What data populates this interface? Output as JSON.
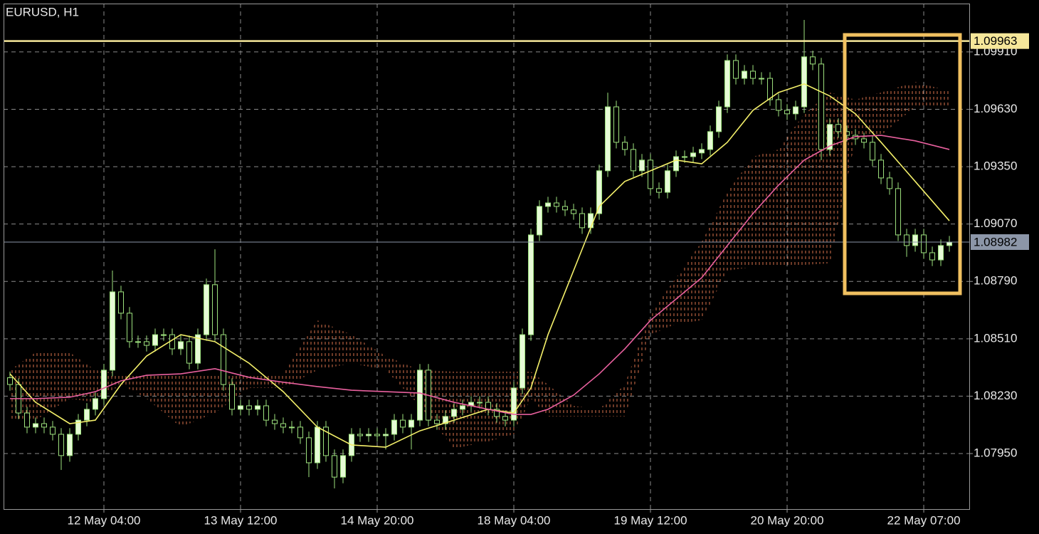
{
  "chart_data": {
    "type": "candlestick",
    "title": "EURUSD, H1",
    "xlim": [
      -0.75,
      112.33
    ],
    "ylim": [
      1.07679,
      1.10146
    ],
    "xticks": [
      {
        "value": 11,
        "label": "12 May 04:00"
      },
      {
        "value": 27,
        "label": "13 May 12:00"
      },
      {
        "value": 43,
        "label": "14 May 20:00"
      },
      {
        "value": 59,
        "label": "18 May 04:00"
      },
      {
        "value": 75,
        "label": "19 May 12:00"
      },
      {
        "value": 91,
        "label": "20 May 20:00"
      },
      {
        "value": 107,
        "label": "22 May 07:00"
      }
    ],
    "yticks": [
      {
        "value": 1.0795,
        "label": "1.07950"
      },
      {
        "value": 1.0823,
        "label": "1.08230"
      },
      {
        "value": 1.0851,
        "label": "1.08510"
      },
      {
        "value": 1.0879,
        "label": "1.08790"
      },
      {
        "value": 1.0907,
        "label": "1.09070"
      },
      {
        "value": 1.0935,
        "label": "1.09350"
      },
      {
        "value": 1.0963,
        "label": "1.09630"
      },
      {
        "value": 1.0991,
        "label": "1.09910"
      }
    ],
    "grid": true,
    "bull_color": "#e6fbd6",
    "bear_color": "#000000",
    "wick_color": "#9ee27e",
    "candles": [
      [
        1.0832,
        1.0835,
        1.08257,
        1.08287
      ],
      [
        1.08287,
        1.08317,
        1.08118,
        1.08148
      ],
      [
        1.08148,
        1.08178,
        1.08049,
        1.08079
      ],
      [
        1.08079,
        1.08126,
        1.08049,
        1.08096
      ],
      [
        1.08096,
        1.08126,
        1.08049,
        1.08079
      ],
      [
        1.08079,
        1.08109,
        1.08014,
        1.08044
      ],
      [
        1.08044,
        1.08074,
        1.0787,
        1.0794
      ],
      [
        1.0794,
        1.08074,
        1.0791,
        1.08044
      ],
      [
        1.08044,
        1.08143,
        1.08014,
        1.08113
      ],
      [
        1.08113,
        1.08196,
        1.08083,
        1.08166
      ],
      [
        1.08166,
        1.08248,
        1.08136,
        1.08218
      ],
      [
        1.08218,
        1.08387,
        1.08188,
        1.08357
      ],
      [
        1.08357,
        1.08843,
        1.08327,
        1.08739
      ],
      [
        1.08739,
        1.08769,
        1.08605,
        1.08635
      ],
      [
        1.08635,
        1.08665,
        1.08466,
        1.08496
      ],
      [
        1.08496,
        1.08526,
        1.08466,
        1.08496
      ],
      [
        1.08496,
        1.08526,
        1.08448,
        1.08478
      ],
      [
        1.08478,
        1.0856,
        1.08448,
        1.0853
      ],
      [
        1.0853,
        1.0856,
        1.085,
        1.0853
      ],
      [
        1.0853,
        1.0856,
        1.08431,
        1.08461
      ],
      [
        1.08461,
        1.08526,
        1.08431,
        1.08496
      ],
      [
        1.08496,
        1.08526,
        1.08361,
        1.08391
      ],
      [
        1.08391,
        1.0856,
        1.08361,
        1.0853
      ],
      [
        1.0853,
        1.08804,
        1.085,
        1.08774
      ],
      [
        1.08774,
        1.08947,
        1.085,
        1.0853
      ],
      [
        1.0853,
        1.0856,
        1.08257,
        1.08287
      ],
      [
        1.08287,
        1.08317,
        1.08136,
        1.08166
      ],
      [
        1.08166,
        1.08213,
        1.08136,
        1.08183
      ],
      [
        1.08183,
        1.08213,
        1.08136,
        1.08166
      ],
      [
        1.08166,
        1.08213,
        1.08136,
        1.08183
      ],
      [
        1.08183,
        1.08213,
        1.08083,
        1.08113
      ],
      [
        1.08113,
        1.08143,
        1.08066,
        1.08096
      ],
      [
        1.08096,
        1.08126,
        1.08049,
        1.08079
      ],
      [
        1.08079,
        1.08109,
        1.08049,
        1.08079
      ],
      [
        1.08079,
        1.08109,
        1.07997,
        1.08027
      ],
      [
        1.08027,
        1.08057,
        1.07835,
        1.07905
      ],
      [
        1.07905,
        1.08109,
        1.07875,
        1.08079
      ],
      [
        1.08079,
        1.08109,
        1.0791,
        1.0794
      ],
      [
        1.0794,
        1.0797,
        1.0778,
        1.07835
      ],
      [
        1.07835,
        1.0797,
        1.07805,
        1.0794
      ],
      [
        1.0794,
        1.08074,
        1.0791,
        1.08044
      ],
      [
        1.08044,
        1.08074,
        1.08007,
        1.08037
      ],
      [
        1.08037,
        1.08074,
        1.08007,
        1.08044
      ],
      [
        1.08044,
        1.08074,
        1.08007,
        1.08037
      ],
      [
        1.08037,
        1.08074,
        1.0797,
        1.08044
      ],
      [
        1.08044,
        1.08143,
        1.08014,
        1.08113
      ],
      [
        1.08113,
        1.08143,
        1.08049,
        1.08079
      ],
      [
        1.08079,
        1.08143,
        1.0797,
        1.08113
      ],
      [
        1.08113,
        1.08387,
        1.08083,
        1.08357
      ],
      [
        1.08357,
        1.08387,
        1.08083,
        1.08113
      ],
      [
        1.08113,
        1.08143,
        1.08066,
        1.08096
      ],
      [
        1.08096,
        1.08161,
        1.08066,
        1.08131
      ],
      [
        1.08131,
        1.08196,
        1.08101,
        1.08166
      ],
      [
        1.08166,
        1.08213,
        1.08136,
        1.08183
      ],
      [
        1.08183,
        1.0823,
        1.08153,
        1.082
      ],
      [
        1.082,
        1.0823,
        1.0817,
        1.082
      ],
      [
        1.082,
        1.0823,
        1.08136,
        1.08166
      ],
      [
        1.08166,
        1.08196,
        1.08101,
        1.08131
      ],
      [
        1.08131,
        1.08161,
        1.08083,
        1.08113
      ],
      [
        1.08113,
        1.083,
        1.08083,
        1.0827
      ],
      [
        1.0827,
        1.0856,
        1.0824,
        1.0853
      ],
      [
        1.0853,
        1.09047,
        1.085,
        1.09017
      ],
      [
        1.09017,
        1.09186,
        1.08987,
        1.09156
      ],
      [
        1.09156,
        1.09203,
        1.09126,
        1.09173
      ],
      [
        1.09173,
        1.09203,
        1.09126,
        1.09156
      ],
      [
        1.09156,
        1.09186,
        1.09109,
        1.09139
      ],
      [
        1.09139,
        1.09169,
        1.09091,
        1.09121
      ],
      [
        1.09121,
        1.09151,
        1.09022,
        1.09052
      ],
      [
        1.09052,
        1.09151,
        1.09022,
        1.09121
      ],
      [
        1.09121,
        1.0936,
        1.09091,
        1.0933
      ],
      [
        1.0933,
        1.09711,
        1.093,
        1.09642
      ],
      [
        1.09642,
        1.09672,
        1.09439,
        1.09469
      ],
      [
        1.09469,
        1.09499,
        1.09404,
        1.09434
      ],
      [
        1.09434,
        1.09464,
        1.093,
        1.0933
      ],
      [
        1.0933,
        1.09412,
        1.093,
        1.09382
      ],
      [
        1.09382,
        1.09412,
        1.09213,
        1.09243
      ],
      [
        1.09243,
        1.09273,
        1.09195,
        1.09225
      ],
      [
        1.09225,
        1.0936,
        1.09195,
        1.0933
      ],
      [
        1.0933,
        1.09429,
        1.093,
        1.09399
      ],
      [
        1.09399,
        1.09429,
        1.09369,
        1.09399
      ],
      [
        1.09399,
        1.09447,
        1.09369,
        1.09417
      ],
      [
        1.09417,
        1.09464,
        1.09387,
        1.09434
      ],
      [
        1.09434,
        1.09551,
        1.09404,
        1.09521
      ],
      [
        1.09521,
        1.09672,
        1.09491,
        1.09642
      ],
      [
        1.09642,
        1.09898,
        1.09612,
        1.09868
      ],
      [
        1.09868,
        1.09898,
        1.09751,
        1.09781
      ],
      [
        1.09781,
        1.09846,
        1.09751,
        1.09816
      ],
      [
        1.09816,
        1.09846,
        1.09751,
        1.09781
      ],
      [
        1.09781,
        1.09811,
        1.09751,
        1.09781
      ],
      [
        1.09781,
        1.09811,
        1.09647,
        1.09677
      ],
      [
        1.09677,
        1.09707,
        1.09595,
        1.09625
      ],
      [
        1.09625,
        1.09655,
        1.09578,
        1.09608
      ],
      [
        1.09608,
        1.09672,
        1.09578,
        1.09642
      ],
      [
        1.09642,
        1.10066,
        1.09612,
        1.09886
      ],
      [
        1.09886,
        1.09916,
        1.09821,
        1.09851
      ],
      [
        1.09851,
        1.09881,
        1.09382,
        1.09434
      ],
      [
        1.09434,
        1.09586,
        1.09404,
        1.09556
      ],
      [
        1.09556,
        1.09586,
        1.09491,
        1.09521
      ],
      [
        1.09521,
        1.09551,
        1.09473,
        1.09503
      ],
      [
        1.09503,
        1.09533,
        1.09456,
        1.09486
      ],
      [
        1.09486,
        1.09516,
        1.09439,
        1.09469
      ],
      [
        1.09469,
        1.09499,
        1.09352,
        1.09382
      ],
      [
        1.09382,
        1.09412,
        1.09265,
        1.09295
      ],
      [
        1.09295,
        1.09325,
        1.09213,
        1.09243
      ],
      [
        1.09243,
        1.09273,
        1.08987,
        1.09017
      ],
      [
        1.09017,
        1.09047,
        1.0891,
        1.08965
      ],
      [
        1.08965,
        1.09047,
        1.08935,
        1.09017
      ],
      [
        1.09017,
        1.09047,
        1.089,
        1.0893
      ],
      [
        1.0893,
        1.0896,
        1.08865,
        1.08895
      ],
      [
        1.08895,
        1.08995,
        1.08865,
        1.08965
      ],
      [
        1.08965,
        1.09012,
        1.08935,
        1.08982
      ]
    ],
    "indicator_x": [
      0,
      3,
      7,
      10,
      13,
      16,
      20,
      24,
      28,
      32,
      36,
      40,
      44,
      48,
      52,
      56,
      59,
      61,
      63,
      66,
      69,
      72,
      75,
      78,
      81,
      84,
      87,
      90,
      93,
      96,
      99,
      102,
      106,
      110
    ],
    "moving_averages": [
      {
        "color": "#f4f06a",
        "values": [
          1.08339,
          1.082,
          1.08096,
          1.08113,
          1.08287,
          1.08426,
          1.0853,
          1.08496,
          1.08391,
          1.08252,
          1.08079,
          1.07992,
          1.07981,
          1.08061,
          1.08113,
          1.08166,
          1.08148,
          1.0827,
          1.0853,
          1.08843,
          1.09156,
          1.09278,
          1.0933,
          1.09382,
          1.09364,
          1.09469,
          1.09625,
          1.09712,
          1.09754,
          1.09695,
          1.09608,
          1.09469,
          1.09278,
          1.09086
        ]
      },
      {
        "color": "#e8609e",
        "values": [
          1.08218,
          1.08218,
          1.08225,
          1.08252,
          1.08305,
          1.08332,
          1.08339,
          1.08364,
          1.08322,
          1.08298,
          1.08277,
          1.08259,
          1.08252,
          1.08245,
          1.082,
          1.08166,
          1.08141,
          1.08141,
          1.08166,
          1.08235,
          1.08339,
          1.08461,
          1.086,
          1.08704,
          1.08808,
          1.08965,
          1.09121,
          1.0926,
          1.09382,
          1.09451,
          1.09497,
          1.09503,
          1.09476,
          1.09434
        ]
      }
    ],
    "cloud": {
      "color": "#d8724c",
      "upper": [
        1.08357,
        1.08444,
        1.08444,
        1.08357,
        1.08339,
        1.08339,
        1.08339,
        1.08339,
        1.08339,
        1.08339,
        1.086,
        1.0853,
        1.08426,
        1.08357,
        1.0835,
        1.0835,
        1.0835,
        1.0835,
        1.08287,
        1.08183,
        1.08166,
        1.08287,
        1.08635,
        1.08808,
        1.08982,
        1.09225,
        1.09399,
        1.09434,
        1.09608,
        1.09712,
        1.09677,
        1.09712,
        1.09764,
        1.09719
      ],
      "lower": [
        1.08113,
        1.08113,
        1.08218,
        1.082,
        1.08287,
        1.08218,
        1.08079,
        1.08148,
        1.0827,
        1.0827,
        1.08357,
        1.08391,
        1.08357,
        1.08183,
        1.07974,
        1.08009,
        1.08044,
        1.08218,
        1.08131,
        1.08131,
        1.08131,
        1.08131,
        1.0853,
        1.08583,
        1.086,
        1.08843,
        1.08861,
        1.08871,
        1.08871,
        1.08878,
        1.09486,
        1.09503,
        1.09642,
        1.09642
      ]
    },
    "levels": [
      {
        "value": 1.09963,
        "color": "#f6e79a"
      },
      {
        "value": 1.08982,
        "color": "#8c96a8"
      }
    ]
  }
}
